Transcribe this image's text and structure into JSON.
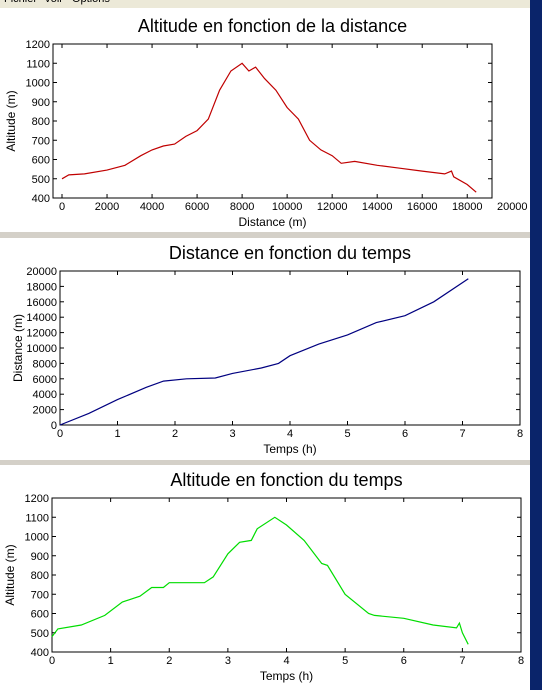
{
  "menu": [
    "Fichier",
    "Voir",
    "Options"
  ],
  "chart_data": [
    {
      "type": "line",
      "title": "Altitude en fonction de la distance",
      "xlabel": "Distance (m)",
      "ylabel": "Altitude (m)",
      "xlim": [
        -400,
        19100
      ],
      "ylim": [
        400,
        1200
      ],
      "xticks": [
        0,
        2000,
        4000,
        6000,
        8000,
        10000,
        12000,
        14000,
        16000,
        18000,
        20000
      ],
      "yticks": [
        400,
        500,
        600,
        700,
        800,
        900,
        1000,
        1100,
        1200
      ],
      "series": [
        {
          "color": "#c00000",
          "x": [
            0,
            300,
            1000,
            2000,
            2800,
            3500,
            4000,
            4500,
            5000,
            5500,
            6000,
            6500,
            7000,
            7500,
            8000,
            8300,
            8600,
            9000,
            9500,
            10000,
            10500,
            11000,
            11500,
            12000,
            12400,
            13000,
            14000,
            15000,
            16000,
            17000,
            17300,
            17400,
            18000,
            18400
          ],
          "values": [
            500,
            520,
            525,
            545,
            570,
            620,
            650,
            670,
            680,
            720,
            750,
            810,
            960,
            1060,
            1100,
            1060,
            1080,
            1020,
            960,
            870,
            810,
            700,
            650,
            620,
            580,
            590,
            570,
            555,
            540,
            525,
            540,
            510,
            470,
            430
          ]
        }
      ]
    },
    {
      "type": "line",
      "title": "Distance en fonction du temps",
      "xlabel": "Temps (h)",
      "ylabel": "Distance (m)",
      "xlim": [
        0,
        8
      ],
      "ylim": [
        0,
        20000
      ],
      "xticks": [
        0,
        1,
        2,
        3,
        4,
        5,
        6,
        7,
        8
      ],
      "yticks": [
        0,
        2000,
        4000,
        6000,
        8000,
        10000,
        12000,
        14000,
        16000,
        18000,
        20000
      ],
      "series": [
        {
          "color": "#000080",
          "x": [
            0,
            0.5,
            1,
            1.5,
            1.8,
            2.2,
            2.7,
            3,
            3.5,
            3.8,
            4,
            4.5,
            5,
            5.5,
            6,
            6.5,
            7.1
          ],
          "values": [
            0,
            1500,
            3300,
            4900,
            5700,
            6000,
            6100,
            6700,
            7400,
            8000,
            9000,
            10500,
            11700,
            13300,
            14200,
            16000,
            19000
          ]
        }
      ]
    },
    {
      "type": "line",
      "title": "Altitude en fonction du temps",
      "xlabel": "Temps (h)",
      "ylabel": "Altitude (m)",
      "xlim": [
        0,
        8
      ],
      "ylim": [
        400,
        1200
      ],
      "xticks": [
        0,
        1,
        2,
        3,
        4,
        5,
        6,
        7,
        8
      ],
      "yticks": [
        400,
        500,
        600,
        700,
        800,
        900,
        1000,
        1100,
        1200
      ],
      "series": [
        {
          "color": "#00dd00",
          "x": [
            0,
            0.1,
            0.5,
            0.9,
            1.2,
            1.5,
            1.7,
            1.9,
            2.0,
            2.6,
            2.75,
            3,
            3.2,
            3.4,
            3.5,
            3.8,
            4,
            4.3,
            4.6,
            4.7,
            5,
            5.4,
            5.5,
            6,
            6.5,
            6.9,
            6.95,
            7,
            7.1
          ],
          "values": [
            480,
            520,
            540,
            590,
            660,
            690,
            735,
            735,
            760,
            760,
            790,
            910,
            970,
            980,
            1040,
            1100,
            1060,
            980,
            860,
            850,
            700,
            600,
            590,
            575,
            540,
            525,
            550,
            500,
            440
          ]
        }
      ]
    }
  ]
}
